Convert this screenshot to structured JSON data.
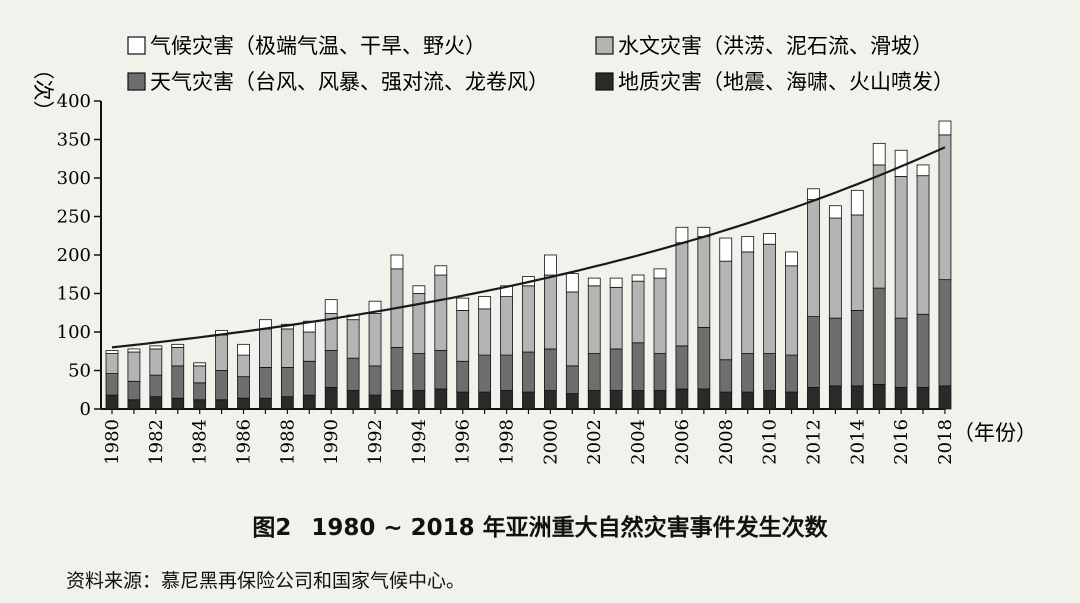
{
  "caption": {
    "figure_label": "图2",
    "title": "1980 ~ 2018 年亚洲重大自然灾害事件发生次数"
  },
  "source_note": "资料来源：慕尼黑再保险公司和国家气候中心。",
  "chart_data": {
    "type": "bar",
    "stacked": true,
    "title": "",
    "xlabel": "（年份）",
    "ylabel": "（次）",
    "ylim": [
      0,
      400
    ],
    "yticks": [
      0,
      50,
      100,
      150,
      200,
      250,
      300,
      350,
      400
    ],
    "categories": [
      1980,
      1981,
      1982,
      1983,
      1984,
      1985,
      1986,
      1987,
      1988,
      1989,
      1990,
      1991,
      1992,
      1993,
      1994,
      1995,
      1996,
      1997,
      1998,
      1999,
      2000,
      2001,
      2002,
      2003,
      2004,
      2005,
      2006,
      2007,
      2008,
      2009,
      2010,
      2011,
      2012,
      2013,
      2014,
      2015,
      2016,
      2017,
      2018
    ],
    "xtick_labels": [
      "1980",
      "1982",
      "1984",
      "1986",
      "1988",
      "1990",
      "1992",
      "1994",
      "1996",
      "1998",
      "2000",
      "2002",
      "2004",
      "2006",
      "2008",
      "2010",
      "2012",
      "2014",
      "2016",
      "2018"
    ],
    "legend_position": "top",
    "series": [
      {
        "name": "地质灾害（地震、海啸、火山喷发）",
        "color": "#2a2a2a",
        "values": [
          18,
          12,
          16,
          14,
          12,
          12,
          14,
          14,
          16,
          18,
          28,
          24,
          18,
          24,
          24,
          26,
          22,
          22,
          24,
          22,
          24,
          20,
          24,
          24,
          24,
          24,
          26,
          26,
          22,
          22,
          24,
          22,
          28,
          30,
          30,
          32,
          28,
          28,
          30
        ]
      },
      {
        "name": "天气灾害（台风、风暴、强对流、龙卷风）",
        "color": "#6e6e6e",
        "values": [
          28,
          24,
          28,
          42,
          22,
          38,
          28,
          40,
          38,
          44,
          48,
          42,
          38,
          56,
          48,
          50,
          40,
          48,
          46,
          52,
          54,
          36,
          48,
          54,
          62,
          48,
          56,
          80,
          42,
          50,
          48,
          48,
          92,
          88,
          98,
          125,
          90,
          95,
          138
        ]
      },
      {
        "name": "水文灾害（洪涝、泥石流、滑坡）",
        "color": "#b4b4b4",
        "values": [
          26,
          38,
          34,
          24,
          22,
          46,
          28,
          50,
          50,
          38,
          48,
          50,
          68,
          102,
          78,
          98,
          66,
          60,
          76,
          86,
          96,
          96,
          88,
          80,
          80,
          98,
          134,
          118,
          128,
          132,
          142,
          116,
          152,
          130,
          124,
          160,
          184,
          180,
          188
        ]
      },
      {
        "name": "气候灾害（极端气温、干旱、野火）",
        "color": "#ffffff",
        "values": [
          4,
          4,
          4,
          4,
          4,
          6,
          14,
          12,
          6,
          14,
          18,
          6,
          16,
          18,
          10,
          12,
          16,
          16,
          14,
          12,
          26,
          24,
          10,
          12,
          8,
          12,
          20,
          12,
          30,
          20,
          14,
          18,
          14,
          16,
          32,
          28,
          34,
          14,
          18
        ]
      }
    ],
    "trendline": {
      "type": "exponential",
      "start": {
        "x": 1980,
        "y": 80
      },
      "end": {
        "x": 2018,
        "y": 340
      }
    }
  }
}
